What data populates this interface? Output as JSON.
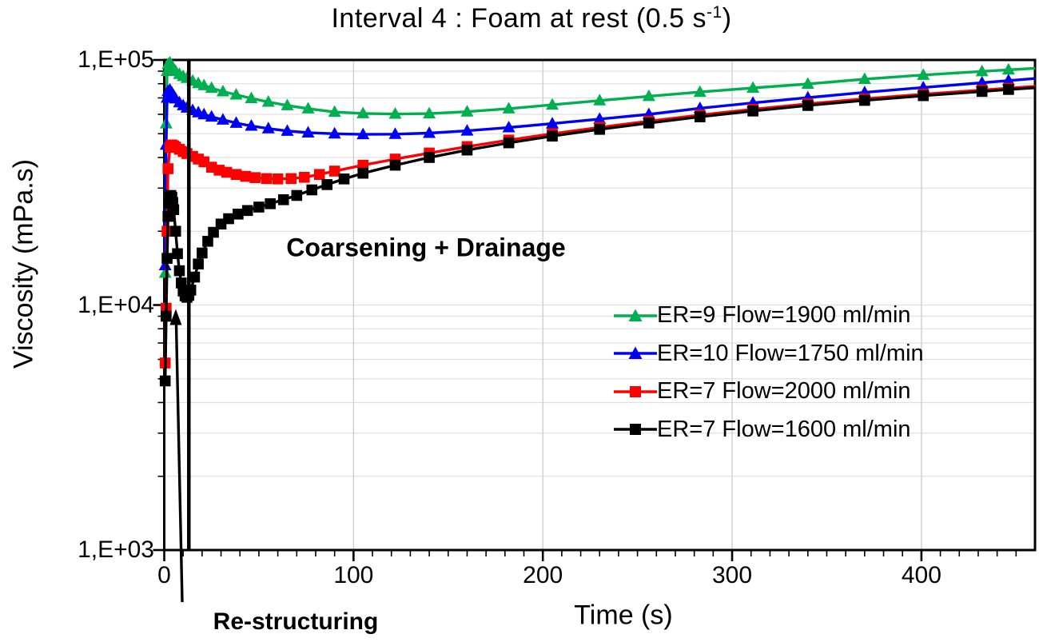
{
  "title_parts": {
    "prefix": "Interval 4 : Foam at rest (0.5 s",
    "sup": "-1",
    "suffix": ")"
  },
  "chart_data": {
    "type": "line",
    "title": "Interval 4 : Foam at rest (0.5 s-1)",
    "xlabel": "Time (s)",
    "ylabel": "Viscosity (mPa.s)",
    "x_range": [
      0,
      460
    ],
    "y_scale": "log",
    "y_range": [
      1000,
      100000
    ],
    "x_ticks": {
      "values": [
        0,
        100,
        200,
        300,
        400
      ],
      "labels": [
        "0",
        "100",
        "200",
        "300",
        "400"
      ],
      "minor_step": 10
    },
    "y_ticks": {
      "values": [
        1000,
        10000,
        100000
      ],
      "labels": [
        "1,E+03",
        "1,E+04",
        "1,E+05"
      ]
    },
    "grid": {
      "vertical_at": [
        100,
        200,
        300,
        400
      ],
      "horizontal": "log-minor",
      "h_color": "#e0e0e0",
      "v_color": "#cfcfcf"
    },
    "legend_position": "center-right",
    "series": [
      {
        "name": "ER=9 Flow=1900 ml/min",
        "color": "#00b050",
        "marker": "triangle",
        "points": [
          [
            0.5,
            13500
          ],
          [
            1,
            55000
          ],
          [
            1.5,
            90000
          ],
          [
            2,
            96000
          ],
          [
            3,
            97500
          ],
          [
            4,
            94500
          ],
          [
            5,
            92000
          ],
          [
            6,
            90000
          ],
          [
            8,
            87500
          ],
          [
            10,
            85800
          ],
          [
            12,
            84300
          ],
          [
            15,
            82200
          ],
          [
            18,
            80300
          ],
          [
            21,
            78700
          ],
          [
            25,
            76800
          ],
          [
            31,
            74300
          ],
          [
            38,
            72100
          ],
          [
            46,
            69700
          ],
          [
            55,
            67400
          ],
          [
            65,
            65200
          ],
          [
            76,
            63300
          ],
          [
            90,
            61300
          ],
          [
            105,
            60500
          ],
          [
            122,
            60200
          ],
          [
            140,
            60400
          ],
          [
            160,
            61500
          ],
          [
            182,
            63300
          ],
          [
            205,
            65600
          ],
          [
            230,
            68300
          ],
          [
            256,
            71100
          ],
          [
            283,
            74000
          ],
          [
            311,
            76900
          ],
          [
            340,
            79800
          ],
          [
            370,
            83500
          ],
          [
            401,
            86800
          ],
          [
            432,
            89800
          ],
          [
            446,
            91200
          ],
          [
            460,
            92500
          ]
        ]
      },
      {
        "name": "ER=10 Flow=1750 ml/min",
        "color": "#0000f5",
        "marker": "triangle",
        "points": [
          [
            0.5,
            14500
          ],
          [
            1,
            45000
          ],
          [
            1.5,
            70000
          ],
          [
            2,
            74500
          ],
          [
            3,
            75500
          ],
          [
            4,
            73500
          ],
          [
            5,
            71500
          ],
          [
            6,
            69500
          ],
          [
            8,
            67000
          ],
          [
            10,
            65200
          ],
          [
            12,
            63800
          ],
          [
            15,
            62300
          ],
          [
            18,
            61000
          ],
          [
            21,
            59900
          ],
          [
            25,
            58600
          ],
          [
            31,
            57000
          ],
          [
            38,
            55300
          ],
          [
            46,
            53800
          ],
          [
            55,
            52500
          ],
          [
            65,
            51300
          ],
          [
            76,
            50500
          ],
          [
            90,
            50000
          ],
          [
            105,
            49700
          ],
          [
            122,
            49800
          ],
          [
            140,
            50300
          ],
          [
            160,
            51400
          ],
          [
            182,
            53000
          ],
          [
            205,
            55000
          ],
          [
            230,
            57400
          ],
          [
            256,
            60000
          ],
          [
            283,
            63500
          ],
          [
            311,
            66800
          ],
          [
            340,
            70200
          ],
          [
            370,
            73700
          ],
          [
            401,
            77200
          ],
          [
            432,
            80700
          ],
          [
            446,
            82400
          ],
          [
            460,
            84000
          ]
        ]
      },
      {
        "name": "ER=7 Flow=2000 ml/min",
        "color": "#ff0000",
        "marker": "square",
        "points": [
          [
            0.5,
            5800
          ],
          [
            1,
            9700
          ],
          [
            1.5,
            20000
          ],
          [
            2,
            36000
          ],
          [
            3,
            44000
          ],
          [
            4,
            45000
          ],
          [
            5,
            44600
          ],
          [
            6,
            44100
          ],
          [
            8,
            43200
          ],
          [
            10,
            42300
          ],
          [
            12,
            41500
          ],
          [
            15,
            40400
          ],
          [
            18,
            39400
          ],
          [
            21,
            38400
          ],
          [
            25,
            36500
          ],
          [
            29,
            35500
          ],
          [
            33,
            34800
          ],
          [
            38,
            34100
          ],
          [
            43,
            33500
          ],
          [
            48,
            33100
          ],
          [
            54,
            32800
          ],
          [
            60,
            32700
          ],
          [
            67,
            32800
          ],
          [
            74,
            33200
          ],
          [
            82,
            34100
          ],
          [
            90,
            35200
          ],
          [
            105,
            37200
          ],
          [
            122,
            39400
          ],
          [
            140,
            41700
          ],
          [
            160,
            44300
          ],
          [
            182,
            47100
          ],
          [
            205,
            50000
          ],
          [
            230,
            53100
          ],
          [
            256,
            56300
          ],
          [
            283,
            59600
          ],
          [
            311,
            62900
          ],
          [
            340,
            66200
          ],
          [
            370,
            69400
          ],
          [
            401,
            72500
          ],
          [
            432,
            75400
          ],
          [
            446,
            76700
          ],
          [
            460,
            78000
          ]
        ]
      },
      {
        "name": "ER=7 Flow=1600 ml/min",
        "color": "#000000",
        "marker": "square",
        "points": [
          [
            0.5,
            4900
          ],
          [
            1,
            9000
          ],
          [
            1.5,
            15500
          ],
          [
            2,
            23000
          ],
          [
            2.5,
            26000
          ],
          [
            3,
            27500
          ],
          [
            3.5,
            28000
          ],
          [
            4,
            27500
          ],
          [
            4.5,
            26200
          ],
          [
            5,
            24500
          ],
          [
            6,
            20000
          ],
          [
            7,
            16200
          ],
          [
            8,
            13800
          ],
          [
            9,
            12300
          ],
          [
            10,
            11400
          ],
          [
            11,
            10900
          ],
          [
            12,
            10750
          ],
          [
            13,
            10950
          ],
          [
            14,
            11500
          ],
          [
            16,
            13000
          ],
          [
            18,
            14700
          ],
          [
            20,
            16300
          ],
          [
            23,
            18200
          ],
          [
            26,
            19800
          ],
          [
            30,
            21400
          ],
          [
            34,
            22500
          ],
          [
            39,
            23500
          ],
          [
            44,
            24300
          ],
          [
            50,
            25100
          ],
          [
            56,
            25900
          ],
          [
            63,
            26900
          ],
          [
            70,
            28000
          ],
          [
            78,
            29500
          ],
          [
            86,
            31000
          ],
          [
            95,
            32700
          ],
          [
            105,
            34500
          ],
          [
            122,
            37200
          ],
          [
            140,
            40000
          ],
          [
            160,
            42900
          ],
          [
            182,
            45900
          ],
          [
            205,
            48900
          ],
          [
            230,
            52100
          ],
          [
            256,
            55300
          ],
          [
            283,
            58600
          ],
          [
            311,
            61900
          ],
          [
            340,
            65200
          ],
          [
            370,
            68400
          ],
          [
            401,
            71500
          ],
          [
            432,
            74400
          ],
          [
            446,
            75800
          ],
          [
            460,
            77000
          ]
        ]
      }
    ],
    "annotations": {
      "coarsening": "Coarsening + Drainage",
      "restructuring": "Re-structuring",
      "vline_t": 13,
      "arrow": {
        "from_t": 9.5,
        "from_v": 613,
        "to_t": 6.1,
        "to_v": 9000
      }
    }
  }
}
